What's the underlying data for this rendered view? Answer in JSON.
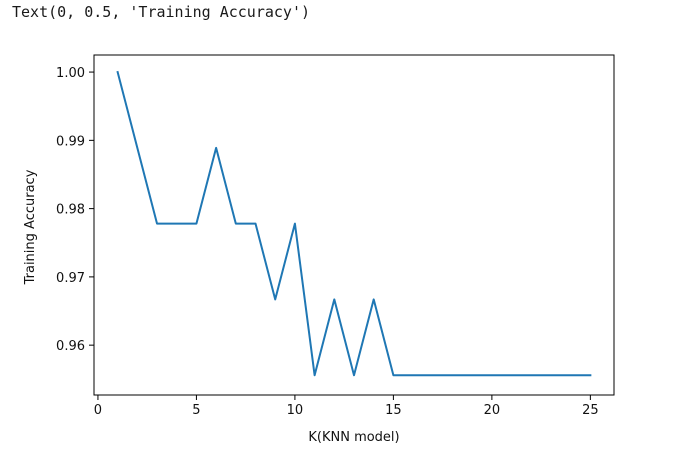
{
  "output_text": "Text(0, 0.5, 'Training Accuracy')",
  "colors": {
    "line": "#1f77b4",
    "axes": "#000000"
  },
  "chart_data": {
    "type": "line",
    "xlabel": "K(KNN model)",
    "ylabel": "Training Accuracy",
    "xlim": [
      -0.2,
      26.2
    ],
    "ylim": [
      0.9527,
      1.0025
    ],
    "xticks": [
      0,
      5,
      10,
      15,
      20,
      25
    ],
    "xtick_labels": [
      "0",
      "5",
      "10",
      "15",
      "20",
      "25"
    ],
    "yticks": [
      0.96,
      0.97,
      0.98,
      0.99,
      1.0
    ],
    "ytick_labels": [
      "0.96",
      "0.97",
      "0.98",
      "0.99",
      "1.00"
    ],
    "grid": false,
    "series": [
      {
        "x": [
          1,
          2,
          3,
          4,
          5,
          6,
          7,
          8,
          9,
          10,
          11,
          12,
          13,
          14,
          15,
          16,
          17,
          18,
          19,
          20,
          21,
          22,
          23,
          24,
          25
        ],
        "values": [
          1.0,
          0.9889,
          0.9778,
          0.9778,
          0.9778,
          0.9889,
          0.9778,
          0.9778,
          0.9667,
          0.9778,
          0.9556,
          0.9667,
          0.9556,
          0.9667,
          0.9556,
          0.9556,
          0.9556,
          0.9556,
          0.9556,
          0.9556,
          0.9556,
          0.9556,
          0.9556,
          0.9556,
          0.9556
        ]
      }
    ]
  }
}
